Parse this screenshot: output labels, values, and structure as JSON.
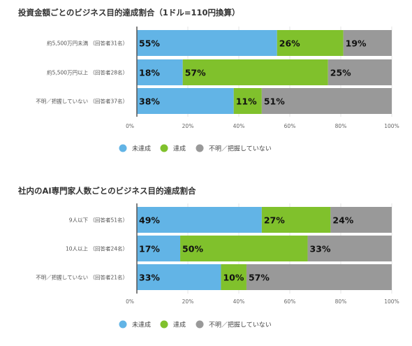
{
  "chart_data": [
    {
      "type": "bar",
      "orientation": "horizontal",
      "stacked": true,
      "title": "投資金額ごとのビジネス目的達成割合（1ドル=110円換算）",
      "categories": [
        "約5,500万円未満 （回答者31名）",
        "約5,500万円以上 （回答者28名）",
        "不明／把握していない （回答者37名）"
      ],
      "series": [
        {
          "name": "未達成",
          "color": "#62b4e6",
          "values": [
            55,
            18,
            38
          ],
          "labels": [
            "55%",
            "18%",
            "38%"
          ]
        },
        {
          "name": "達成",
          "color": "#80c12c",
          "values": [
            26,
            57,
            11
          ],
          "labels": [
            "26%",
            "57%",
            "11%"
          ]
        },
        {
          "name": "不明／把握していない",
          "color": "#999999",
          "values": [
            19,
            25,
            51
          ],
          "labels": [
            "19%",
            "25%",
            "51%"
          ]
        }
      ],
      "xlim": [
        0,
        100
      ],
      "xticks": [
        "0%",
        "20%",
        "40%",
        "60%",
        "80%",
        "100%"
      ],
      "grid": true,
      "legend": "bottom"
    },
    {
      "type": "bar",
      "orientation": "horizontal",
      "stacked": true,
      "title": "社内のAI専門家人数ごとのビジネス目的達成割合",
      "categories": [
        "9人以下 （回答者51名）",
        "10人以上 （回答者24名）",
        "不明／把握していない （回答者21名）"
      ],
      "series": [
        {
          "name": "未達成",
          "color": "#62b4e6",
          "values": [
            49,
            17,
            33
          ],
          "labels": [
            "49%",
            "17%",
            "33%"
          ]
        },
        {
          "name": "達成",
          "color": "#80c12c",
          "values": [
            27,
            50,
            10
          ],
          "labels": [
            "27%",
            "50%",
            "10%"
          ]
        },
        {
          "name": "不明／把握していない",
          "color": "#999999",
          "values": [
            24,
            33,
            57
          ],
          "labels": [
            "24%",
            "33%",
            "57%"
          ]
        }
      ],
      "xlim": [
        0,
        100
      ],
      "xticks": [
        "0%",
        "20%",
        "40%",
        "60%",
        "80%",
        "100%"
      ],
      "grid": true,
      "legend": "bottom"
    }
  ]
}
